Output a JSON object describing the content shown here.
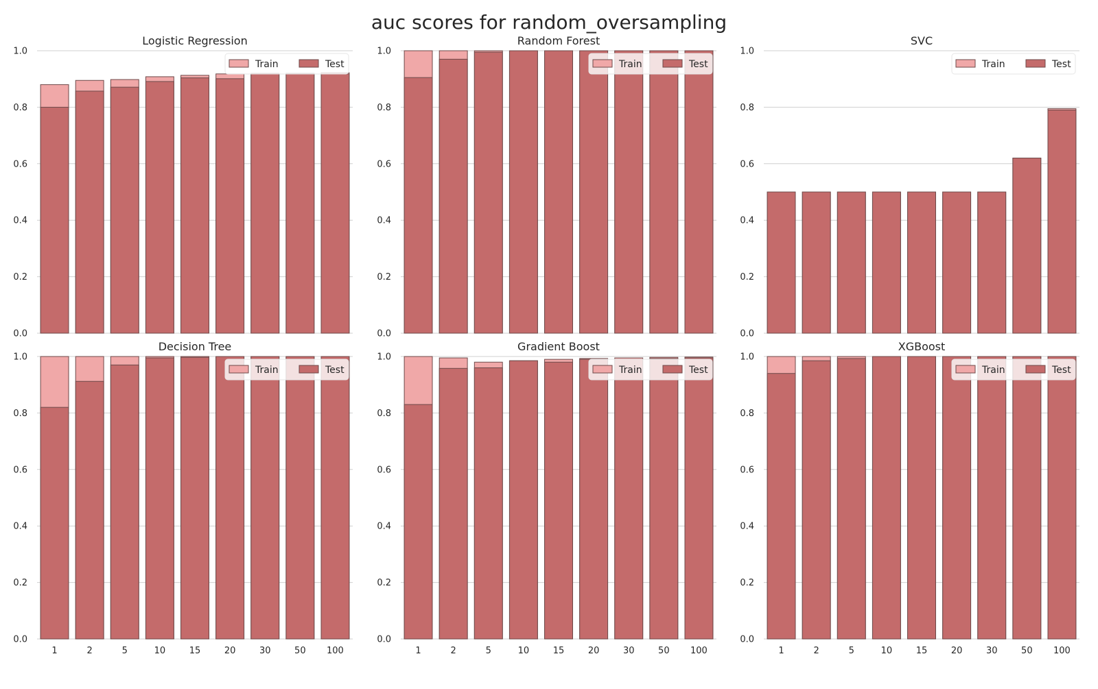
{
  "figure": {
    "title": "auc scores for random_oversampling"
  },
  "colors": {
    "train_fill": "#f0a8a8",
    "test_fill": "#c46b6b",
    "bar_edge": "#6e4a4a",
    "grid": "#cfcfcf"
  },
  "legend": {
    "train_label": "Train",
    "test_label": "Test",
    "placement": "upper right"
  },
  "chart_data": [
    {
      "type": "bar",
      "title": "Logistic Regression",
      "categories": [
        "1",
        "2",
        "5",
        "10",
        "15",
        "20",
        "30",
        "50",
        "100"
      ],
      "ylim": [
        0,
        1.0
      ],
      "yticks": [
        "0.0",
        "0.2",
        "0.4",
        "0.6",
        "0.8",
        "1.0"
      ],
      "grid": true,
      "series": [
        {
          "name": "Train",
          "values": [
            0.88,
            0.895,
            0.898,
            0.908,
            0.913,
            0.918,
            0.92,
            0.92,
            0.922
          ]
        },
        {
          "name": "Test",
          "values": [
            0.8,
            0.857,
            0.871,
            0.891,
            0.904,
            0.901,
            0.918,
            0.92,
            0.918
          ]
        }
      ]
    },
    {
      "type": "bar",
      "title": "Random Forest",
      "categories": [
        "1",
        "2",
        "5",
        "10",
        "15",
        "20",
        "30",
        "50",
        "100"
      ],
      "ylim": [
        0,
        1.0
      ],
      "yticks": [
        "0.0",
        "0.2",
        "0.4",
        "0.6",
        "0.8",
        "1.0"
      ],
      "grid": true,
      "series": [
        {
          "name": "Train",
          "values": [
            1.0,
            1.0,
            1.0,
            1.0,
            1.0,
            1.0,
            1.0,
            1.0,
            1.0
          ]
        },
        {
          "name": "Test",
          "values": [
            0.905,
            0.97,
            0.995,
            1.0,
            1.0,
            1.0,
            1.0,
            1.0,
            1.0
          ]
        }
      ]
    },
    {
      "type": "bar",
      "title": "SVC",
      "categories": [
        "1",
        "2",
        "5",
        "10",
        "15",
        "20",
        "30",
        "50",
        "100"
      ],
      "ylim": [
        0,
        1.0
      ],
      "yticks": [
        "0.0",
        "0.2",
        "0.4",
        "0.6",
        "0.8",
        "1.0"
      ],
      "grid": true,
      "series": [
        {
          "name": "Train",
          "values": [
            0.5,
            0.5,
            0.5,
            0.5,
            0.5,
            0.5,
            0.5,
            0.62,
            0.795
          ]
        },
        {
          "name": "Test",
          "values": [
            0.5,
            0.5,
            0.5,
            0.5,
            0.5,
            0.5,
            0.5,
            0.62,
            0.79
          ]
        }
      ]
    },
    {
      "type": "bar",
      "title": "Decision Tree",
      "categories": [
        "1",
        "2",
        "5",
        "10",
        "15",
        "20",
        "30",
        "50",
        "100"
      ],
      "ylim": [
        0,
        1.0
      ],
      "yticks": [
        "0.0",
        "0.2",
        "0.4",
        "0.6",
        "0.8",
        "1.0"
      ],
      "grid": true,
      "series": [
        {
          "name": "Train",
          "values": [
            1.0,
            1.0,
            1.0,
            1.0,
            1.0,
            1.0,
            1.0,
            1.0,
            1.0
          ]
        },
        {
          "name": "Test",
          "values": [
            0.82,
            0.912,
            0.97,
            0.995,
            0.997,
            1.0,
            1.0,
            1.0,
            1.0
          ]
        }
      ]
    },
    {
      "type": "bar",
      "title": "Gradient Boost",
      "categories": [
        "1",
        "2",
        "5",
        "10",
        "15",
        "20",
        "30",
        "50",
        "100"
      ],
      "ylim": [
        0,
        1.0
      ],
      "yticks": [
        "0.0",
        "0.2",
        "0.4",
        "0.6",
        "0.8",
        "1.0"
      ],
      "grid": true,
      "series": [
        {
          "name": "Train",
          "values": [
            1.0,
            0.995,
            0.98,
            0.985,
            0.99,
            0.993,
            0.995,
            0.997,
            0.998
          ]
        },
        {
          "name": "Test",
          "values": [
            0.83,
            0.958,
            0.96,
            0.985,
            0.98,
            0.99,
            0.99,
            0.993,
            0.995
          ]
        }
      ]
    },
    {
      "type": "bar",
      "title": "XGBoost",
      "categories": [
        "1",
        "2",
        "5",
        "10",
        "15",
        "20",
        "30",
        "50",
        "100"
      ],
      "ylim": [
        0,
        1.0
      ],
      "yticks": [
        "0.0",
        "0.2",
        "0.4",
        "0.6",
        "0.8",
        "1.0"
      ],
      "grid": true,
      "series": [
        {
          "name": "Train",
          "values": [
            1.0,
            1.0,
            1.0,
            1.0,
            1.0,
            1.0,
            1.0,
            1.0,
            1.0
          ]
        },
        {
          "name": "Test",
          "values": [
            0.94,
            0.985,
            0.993,
            1.0,
            1.0,
            1.0,
            1.0,
            1.0,
            1.0
          ]
        }
      ]
    }
  ]
}
